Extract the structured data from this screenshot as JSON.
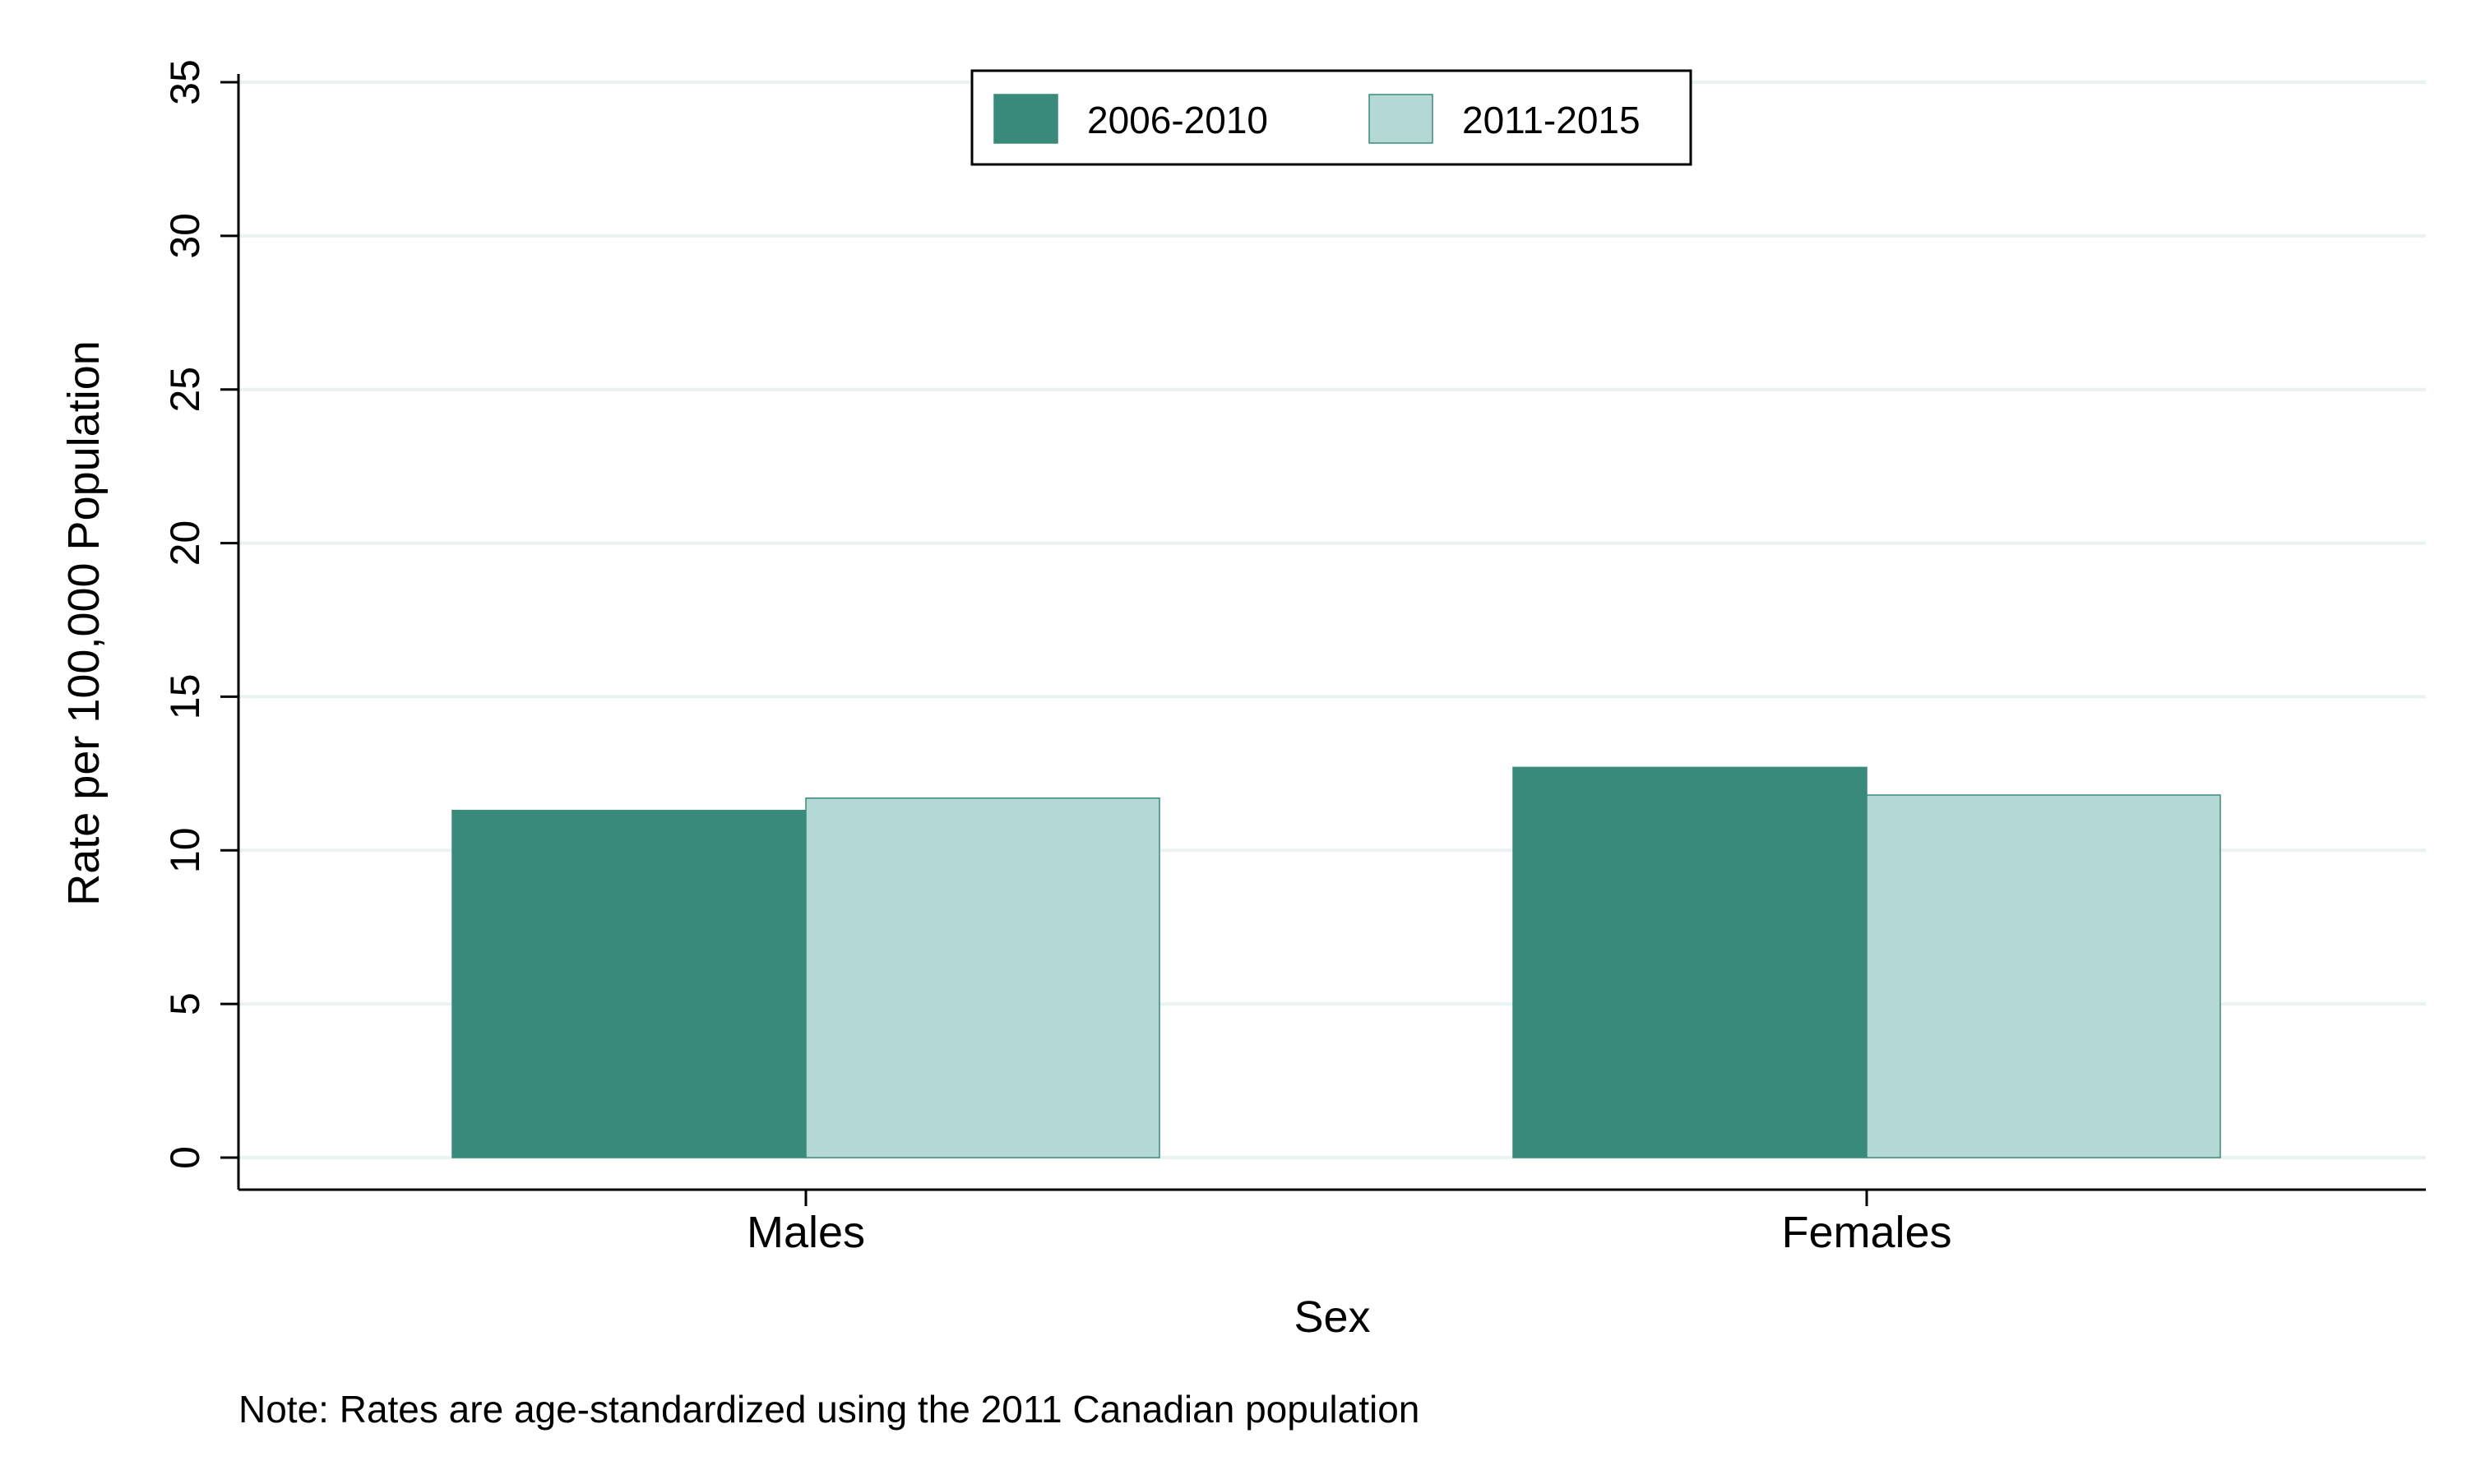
{
  "chart_data": {
    "type": "bar",
    "title": "",
    "xlabel": "Sex",
    "ylabel": "Rate per 100,000 Population",
    "categories": [
      "Males",
      "Females"
    ],
    "series": [
      {
        "name": "2006-2010",
        "values": [
          11.3,
          12.7
        ]
      },
      {
        "name": "2011-2015",
        "values": [
          11.7,
          11.8
        ]
      }
    ],
    "ylim": [
      0,
      35
    ],
    "yticks": [
      0,
      5,
      10,
      15,
      20,
      25,
      30,
      35
    ],
    "grid": true,
    "legend_position": "top-center",
    "note": "Note: Rates are age-standardized using the 2011 Canadian population"
  },
  "colors": {
    "series_1": "#3a8a7b",
    "series_2": "#b4d9d5",
    "series_2_edge": "#3a8a7b",
    "grid": "#eaf2f2",
    "axis": "#000000"
  }
}
